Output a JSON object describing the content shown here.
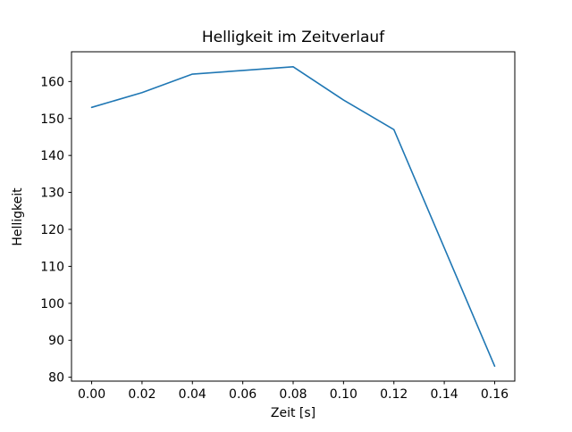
{
  "chart_data": {
    "type": "line",
    "title": "Helligkeit im Zeitverlauf",
    "xlabel": "Zeit [s]",
    "ylabel": "Helligkeit",
    "x": [
      0.0,
      0.02,
      0.04,
      0.06,
      0.08,
      0.1,
      0.12,
      0.14,
      0.16
    ],
    "y": [
      153,
      157,
      162,
      163,
      164,
      155,
      147,
      115,
      83
    ],
    "xlim": [
      -0.008,
      0.168
    ],
    "ylim": [
      78.95,
      168.05
    ],
    "xticks": [
      0.0,
      0.02,
      0.04,
      0.06,
      0.08,
      0.1,
      0.12,
      0.14,
      0.16
    ],
    "xtick_labels": [
      "0.00",
      "0.02",
      "0.04",
      "0.06",
      "0.08",
      "0.10",
      "0.12",
      "0.14",
      "0.16"
    ],
    "yticks": [
      80,
      90,
      100,
      110,
      120,
      130,
      140,
      150,
      160
    ],
    "ytick_labels": [
      "80",
      "90",
      "100",
      "110",
      "120",
      "130",
      "140",
      "150",
      "160"
    ],
    "line_color": "#1f77b4",
    "axis_color": "#000000",
    "grid": false,
    "legend": "none"
  }
}
